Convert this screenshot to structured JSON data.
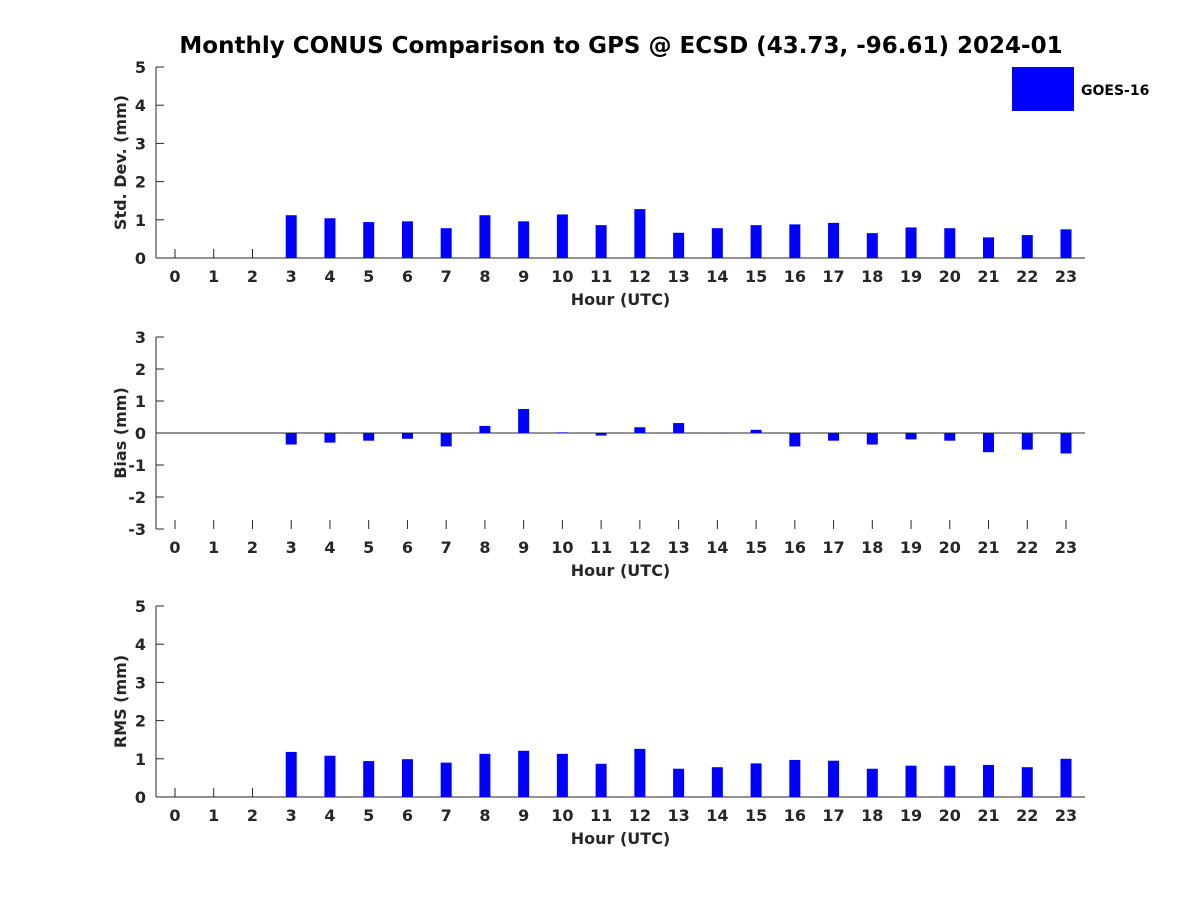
{
  "title": "Monthly CONUS Comparison to GPS @ ECSD (43.73, -96.61) 2024-01",
  "legend": {
    "label": "GOES-16",
    "color": "#0000ff",
    "placement": "top-right"
  },
  "chart_data": [
    {
      "type": "bar",
      "ylabel": "Std. Dev. (mm)",
      "xlabel": "Hour (UTC)",
      "ylim": [
        0,
        5
      ],
      "yticks": [
        0,
        1,
        2,
        3,
        4,
        5
      ],
      "categories": [
        "0",
        "1",
        "2",
        "3",
        "4",
        "5",
        "6",
        "7",
        "8",
        "9",
        "10",
        "11",
        "12",
        "13",
        "14",
        "15",
        "16",
        "17",
        "18",
        "19",
        "20",
        "21",
        "22",
        "23"
      ],
      "series": [
        {
          "name": "GOES-16",
          "values": [
            null,
            null,
            null,
            1.12,
            1.04,
            0.94,
            0.96,
            0.78,
            1.12,
            0.96,
            1.14,
            0.86,
            1.28,
            0.66,
            0.78,
            0.86,
            0.88,
            0.92,
            0.65,
            0.8,
            0.78,
            0.54,
            0.6,
            0.75
          ]
        }
      ]
    },
    {
      "type": "bar",
      "ylabel": "Bias (mm)",
      "xlabel": "Hour (UTC)",
      "ylim": [
        -3,
        3
      ],
      "yticks": [
        -3,
        -2,
        -1,
        0,
        1,
        2,
        3
      ],
      "categories": [
        "0",
        "1",
        "2",
        "3",
        "4",
        "5",
        "6",
        "7",
        "8",
        "9",
        "10",
        "11",
        "12",
        "13",
        "14",
        "15",
        "16",
        "17",
        "18",
        "19",
        "20",
        "21",
        "22",
        "23"
      ],
      "series": [
        {
          "name": "GOES-16",
          "values": [
            null,
            null,
            null,
            -0.36,
            -0.3,
            -0.24,
            -0.18,
            -0.42,
            0.22,
            0.75,
            0.02,
            -0.08,
            0.18,
            0.31,
            0.0,
            0.1,
            -0.42,
            -0.24,
            -0.36,
            -0.2,
            -0.24,
            -0.6,
            -0.52,
            -0.64
          ]
        }
      ]
    },
    {
      "type": "bar",
      "ylabel": "RMS (mm)",
      "xlabel": "Hour (UTC)",
      "ylim": [
        0,
        5
      ],
      "yticks": [
        0,
        1,
        2,
        3,
        4,
        5
      ],
      "categories": [
        "0",
        "1",
        "2",
        "3",
        "4",
        "5",
        "6",
        "7",
        "8",
        "9",
        "10",
        "11",
        "12",
        "13",
        "14",
        "15",
        "16",
        "17",
        "18",
        "19",
        "20",
        "21",
        "22",
        "23"
      ],
      "series": [
        {
          "name": "GOES-16",
          "values": [
            null,
            null,
            null,
            1.18,
            1.08,
            0.94,
            0.99,
            0.9,
            1.13,
            1.21,
            1.13,
            0.87,
            1.26,
            0.74,
            0.78,
            0.88,
            0.97,
            0.95,
            0.74,
            0.82,
            0.82,
            0.84,
            0.78,
            1.0
          ]
        }
      ]
    }
  ]
}
